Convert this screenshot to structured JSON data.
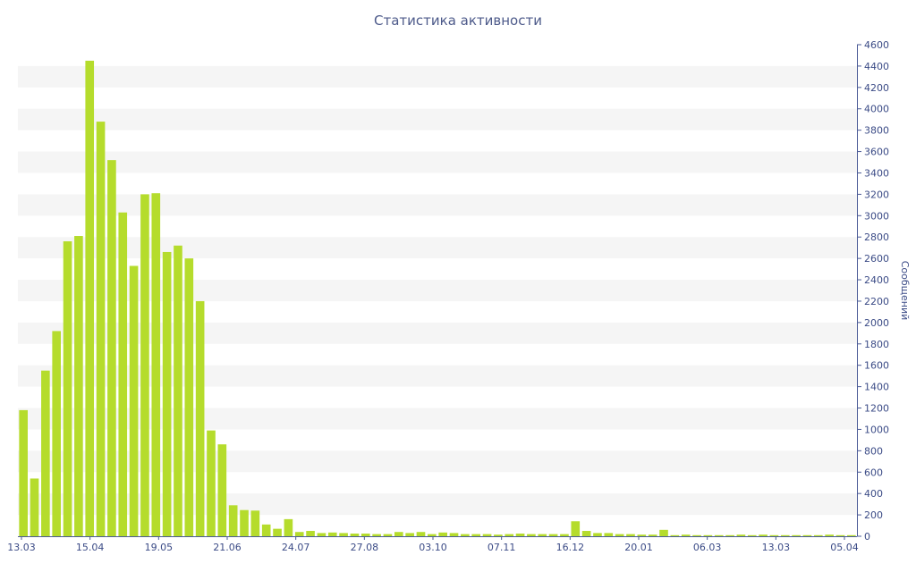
{
  "chart_data": {
    "type": "bar",
    "title": "Статистика активности",
    "ylabel": "Сообщений",
    "xlabel": "",
    "ylim": [
      0,
      4600
    ],
    "y_ticks": [
      0,
      200,
      400,
      600,
      800,
      1000,
      1200,
      1400,
      1600,
      1800,
      2000,
      2200,
      2400,
      2600,
      2800,
      3000,
      3200,
      3400,
      3600,
      3800,
      4000,
      4200,
      4400,
      4600
    ],
    "x_tick_labels": [
      "13.03",
      "15.04",
      "19.05",
      "21.06",
      "24.07",
      "27.08",
      "03.10",
      "07.11",
      "16.12",
      "20.01",
      "06.03",
      "13.03",
      "05.04"
    ],
    "grid": "horizontal alternating bands",
    "y_axis_position": "right",
    "colors": {
      "bar": "#b5dc2c",
      "axis": "#4a5a96",
      "text": "#3b4b86",
      "band": "#f5f5f5"
    },
    "values": [
      1180,
      540,
      1550,
      1920,
      2760,
      2810,
      4450,
      3880,
      3520,
      3030,
      2530,
      3200,
      3210,
      2660,
      2720,
      2600,
      2200,
      990,
      860,
      290,
      245,
      240,
      110,
      70,
      160,
      40,
      50,
      30,
      35,
      30,
      25,
      25,
      20,
      20,
      40,
      30,
      40,
      20,
      35,
      30,
      20,
      20,
      20,
      15,
      20,
      25,
      20,
      20,
      20,
      20,
      140,
      50,
      30,
      30,
      20,
      20,
      15,
      15,
      60,
      10,
      15,
      10,
      10,
      10,
      10,
      15,
      10,
      15,
      10,
      10,
      10,
      10,
      10,
      15,
      10,
      10
    ]
  }
}
